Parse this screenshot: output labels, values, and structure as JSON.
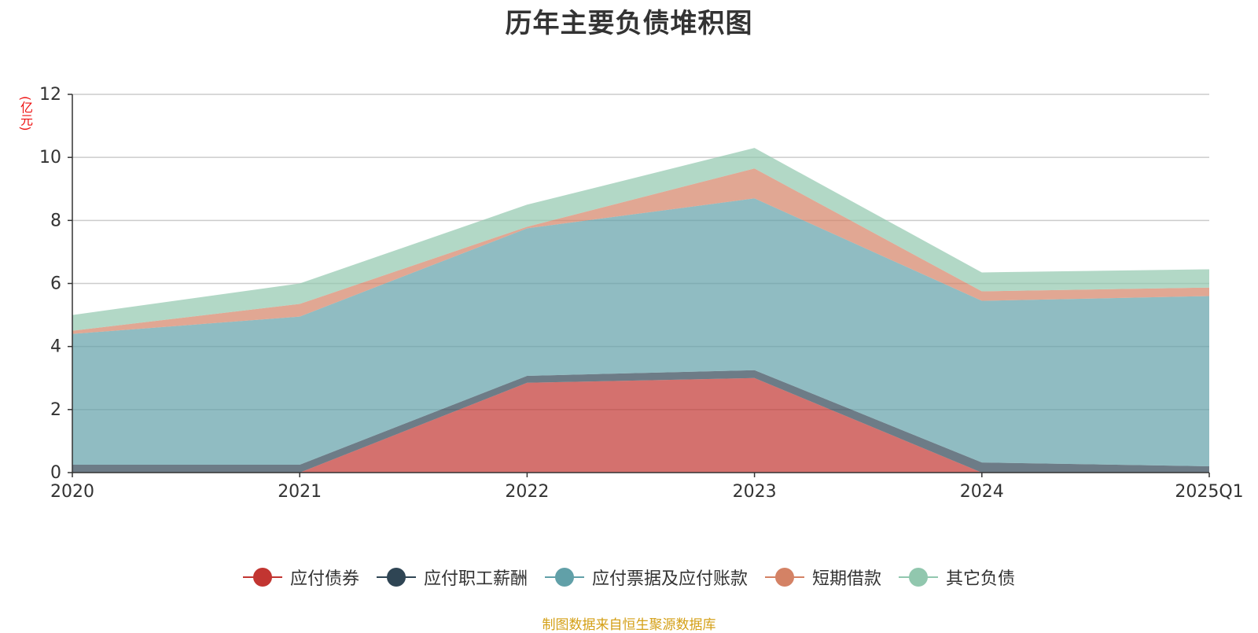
{
  "chart_data": {
    "type": "area",
    "stacked": true,
    "title": "历年主要负债堆积图",
    "ylabel": "(亿元)",
    "xlabel": "",
    "ylim": [
      0,
      12
    ],
    "yticks": [
      0,
      2,
      4,
      6,
      8,
      10,
      12
    ],
    "grid": true,
    "legend_position": "bottom-center",
    "categories": [
      "2020",
      "2021",
      "2022",
      "2023",
      "2024",
      "2025Q1"
    ],
    "series": [
      {
        "name": "应付债券",
        "color": "#c23531",
        "values": [
          0,
          0,
          2.85,
          3.0,
          0,
          0
        ]
      },
      {
        "name": "应付职工薪酬",
        "color": "#2f4554",
        "values": [
          0.25,
          0.25,
          0.22,
          0.25,
          0.32,
          0.2
        ]
      },
      {
        "name": "应付票据及应付账款",
        "color": "#61a0a8",
        "values": [
          4.15,
          4.7,
          4.68,
          5.45,
          5.13,
          5.4
        ]
      },
      {
        "name": "短期借款",
        "color": "#d48265",
        "values": [
          0.1,
          0.4,
          0.05,
          0.95,
          0.3,
          0.27
        ]
      },
      {
        "name": "其它负债",
        "color": "#91c7ae",
        "values": [
          0.5,
          0.65,
          0.7,
          0.65,
          0.6,
          0.58
        ]
      }
    ]
  },
  "source_note": "制图数据来自恒生聚源数据库"
}
